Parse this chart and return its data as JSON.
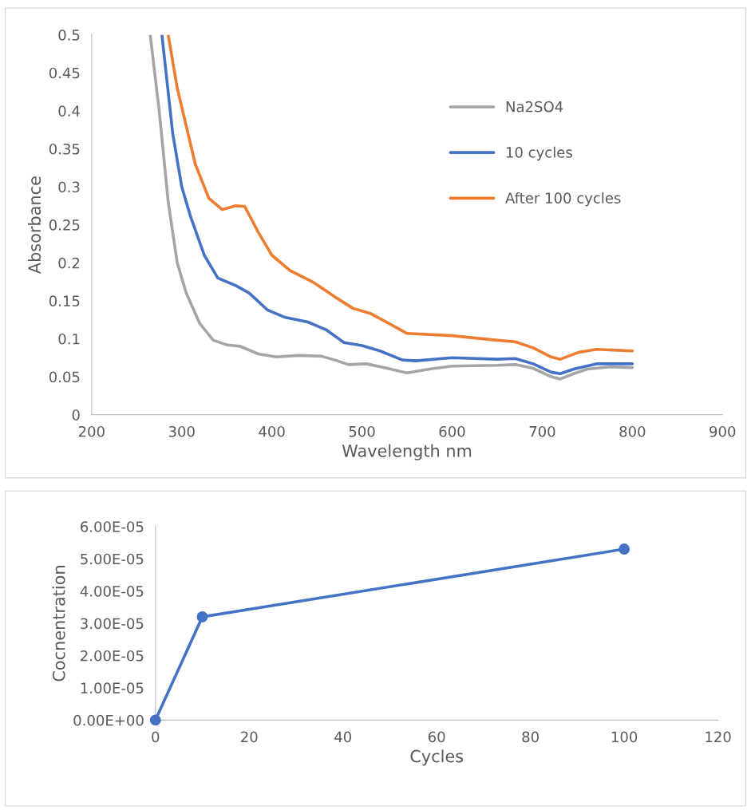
{
  "chart_data": [
    {
      "type": "line",
      "xlabel": "Wavelength nm",
      "ylabel": "Absorbance",
      "xlim": [
        200,
        900
      ],
      "xticks": [
        200,
        300,
        400,
        500,
        600,
        700,
        800,
        900
      ],
      "ylim": [
        0,
        0.5
      ],
      "yticks": [
        0,
        0.05,
        0.1,
        0.15,
        0.2,
        0.25,
        0.3,
        0.35,
        0.4,
        0.45,
        0.5
      ],
      "grid": false,
      "legend": "top right",
      "marker": "none",
      "line_style": "solid",
      "series": [
        {
          "name": "Na2SO4",
          "color": "#a5a5a5",
          "x": [
            265,
            275,
            285,
            295,
            305,
            320,
            335,
            350,
            365,
            385,
            405,
            430,
            455,
            470,
            485,
            505,
            525,
            550,
            575,
            600,
            650,
            670,
            690,
            710,
            720,
            735,
            750,
            775,
            800
          ],
          "values": [
            0.5,
            0.4,
            0.28,
            0.2,
            0.16,
            0.12,
            0.098,
            0.092,
            0.09,
            0.08,
            0.076,
            0.078,
            0.077,
            0.072,
            0.066,
            0.067,
            0.062,
            0.055,
            0.06,
            0.064,
            0.065,
            0.066,
            0.061,
            0.05,
            0.047,
            0.054,
            0.06,
            0.063,
            0.062
          ]
        },
        {
          "name": "10 cycles",
          "color": "#4472c4",
          "x": [
            278,
            290,
            300,
            310,
            325,
            340,
            360,
            375,
            395,
            415,
            440,
            460,
            480,
            500,
            520,
            545,
            560,
            600,
            650,
            670,
            690,
            710,
            720,
            735,
            760,
            800
          ],
          "values": [
            0.5,
            0.37,
            0.3,
            0.26,
            0.21,
            0.18,
            0.17,
            0.16,
            0.138,
            0.128,
            0.122,
            0.112,
            0.095,
            0.091,
            0.084,
            0.072,
            0.071,
            0.075,
            0.073,
            0.074,
            0.067,
            0.056,
            0.054,
            0.06,
            0.067,
            0.067
          ]
        },
        {
          "name": "After 100 cycles",
          "color": "#ed7d31",
          "x": [
            285,
            295,
            305,
            315,
            330,
            345,
            360,
            370,
            385,
            400,
            420,
            445,
            470,
            490,
            510,
            530,
            550,
            600,
            650,
            670,
            690,
            710,
            720,
            740,
            760,
            800
          ],
          "values": [
            0.5,
            0.43,
            0.38,
            0.33,
            0.285,
            0.27,
            0.275,
            0.274,
            0.24,
            0.21,
            0.19,
            0.175,
            0.155,
            0.14,
            0.133,
            0.12,
            0.107,
            0.104,
            0.098,
            0.096,
            0.088,
            0.076,
            0.073,
            0.082,
            0.086,
            0.084
          ]
        }
      ]
    },
    {
      "type": "line",
      "xlabel": "Cycles",
      "ylabel": "Cocnentration",
      "xlim": [
        0,
        120
      ],
      "xticks": [
        0,
        20,
        40,
        60,
        80,
        100,
        120
      ],
      "ylim": [
        0,
        6e-05
      ],
      "yticks": [
        {
          "value": 0,
          "label": "0.00E+00"
        },
        {
          "value": 1e-05,
          "label": "1.00E-05"
        },
        {
          "value": 2e-05,
          "label": "2.00E-05"
        },
        {
          "value": 3e-05,
          "label": "3.00E-05"
        },
        {
          "value": 4e-05,
          "label": "4.00E-05"
        },
        {
          "value": 5e-05,
          "label": "5.00E-05"
        },
        {
          "value": 6e-05,
          "label": "6.00E-05"
        }
      ],
      "grid": false,
      "legend": false,
      "marker": "circle",
      "line_style": "solid",
      "series": [
        {
          "color": "#4472c4",
          "x": [
            0,
            10,
            100
          ],
          "values": [
            0,
            3.2e-05,
            5.3e-05
          ]
        }
      ]
    }
  ]
}
